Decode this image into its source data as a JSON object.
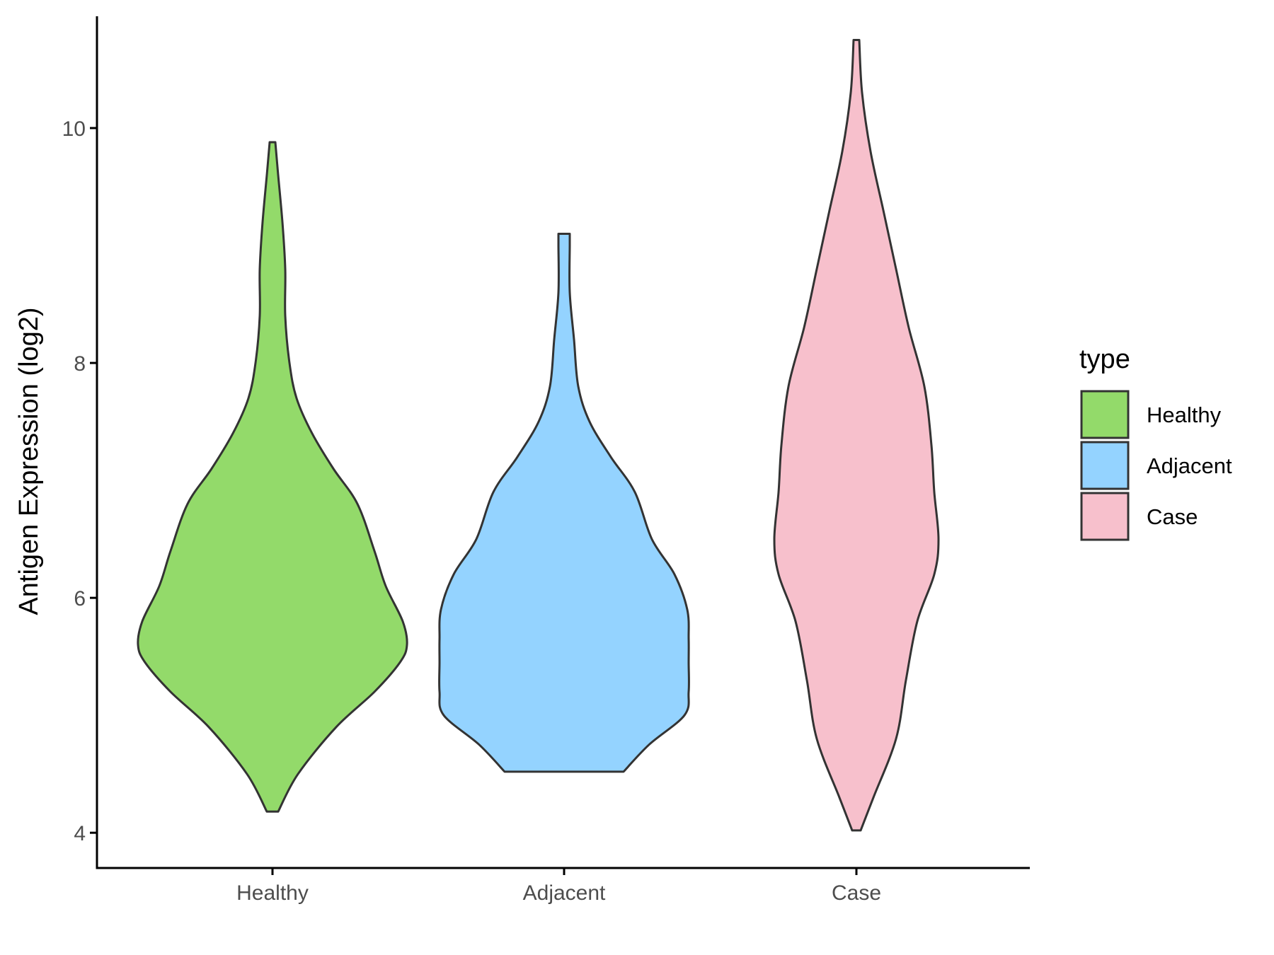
{
  "chart_data": {
    "type": "violin",
    "title": "",
    "xlabel": "",
    "ylabel": "Antigen Expression (log2)",
    "ylim": [
      3.7,
      11.0
    ],
    "yticks": [
      4,
      6,
      8,
      10
    ],
    "grid": false,
    "legend": {
      "title": "type",
      "position": "right"
    },
    "categories": [
      "Healthy",
      "Adjacent",
      "Case"
    ],
    "series": [
      {
        "name": "Healthy",
        "color": "#93DA6A",
        "min": 4.18,
        "max": 9.88,
        "density": [
          [
            4.18,
            0.04
          ],
          [
            4.5,
            0.18
          ],
          [
            4.9,
            0.45
          ],
          [
            5.2,
            0.72
          ],
          [
            5.45,
            0.9
          ],
          [
            5.6,
            0.95
          ],
          [
            5.8,
            0.92
          ],
          [
            6.1,
            0.8
          ],
          [
            6.4,
            0.72
          ],
          [
            6.8,
            0.6
          ],
          [
            7.1,
            0.43
          ],
          [
            7.4,
            0.28
          ],
          [
            7.7,
            0.17
          ],
          [
            8.0,
            0.12
          ],
          [
            8.4,
            0.09
          ],
          [
            8.8,
            0.09
          ],
          [
            9.2,
            0.07
          ],
          [
            9.6,
            0.04
          ],
          [
            9.88,
            0.02
          ]
        ]
      },
      {
        "name": "Adjacent",
        "color": "#94D3FF",
        "min": 4.52,
        "max": 9.1,
        "density": [
          [
            4.52,
            0.42
          ],
          [
            4.75,
            0.6
          ],
          [
            5.0,
            0.85
          ],
          [
            5.2,
            0.88
          ],
          [
            5.45,
            0.88
          ],
          [
            5.65,
            0.88
          ],
          [
            5.9,
            0.87
          ],
          [
            6.2,
            0.78
          ],
          [
            6.5,
            0.62
          ],
          [
            6.9,
            0.5
          ],
          [
            7.2,
            0.33
          ],
          [
            7.5,
            0.18
          ],
          [
            7.8,
            0.1
          ],
          [
            8.2,
            0.07
          ],
          [
            8.6,
            0.04
          ],
          [
            9.0,
            0.04
          ],
          [
            9.1,
            0.04
          ]
        ]
      },
      {
        "name": "Case",
        "color": "#F7C0CC",
        "min": 4.02,
        "max": 10.75,
        "density": [
          [
            4.02,
            0.03
          ],
          [
            4.3,
            0.12
          ],
          [
            4.8,
            0.28
          ],
          [
            5.3,
            0.35
          ],
          [
            5.8,
            0.43
          ],
          [
            6.2,
            0.55
          ],
          [
            6.5,
            0.58
          ],
          [
            6.9,
            0.55
          ],
          [
            7.3,
            0.53
          ],
          [
            7.8,
            0.48
          ],
          [
            8.3,
            0.37
          ],
          [
            8.8,
            0.28
          ],
          [
            9.3,
            0.19
          ],
          [
            9.8,
            0.1
          ],
          [
            10.3,
            0.04
          ],
          [
            10.75,
            0.02
          ]
        ]
      }
    ]
  }
}
